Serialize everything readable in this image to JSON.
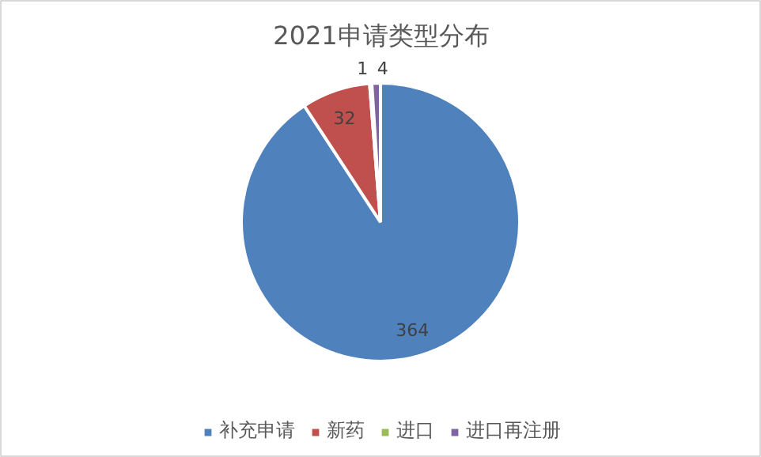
{
  "chart_data": {
    "type": "pie",
    "title": "2021申请类型分布",
    "categories": [
      "补充申请",
      "新药",
      "进口",
      "进口再注册"
    ],
    "values": [
      364,
      32,
      1,
      4
    ],
    "colors": [
      "#4f81bd",
      "#c0504d",
      "#9bbb59",
      "#8064a2"
    ],
    "data_labels": true,
    "legend": "bottom"
  }
}
